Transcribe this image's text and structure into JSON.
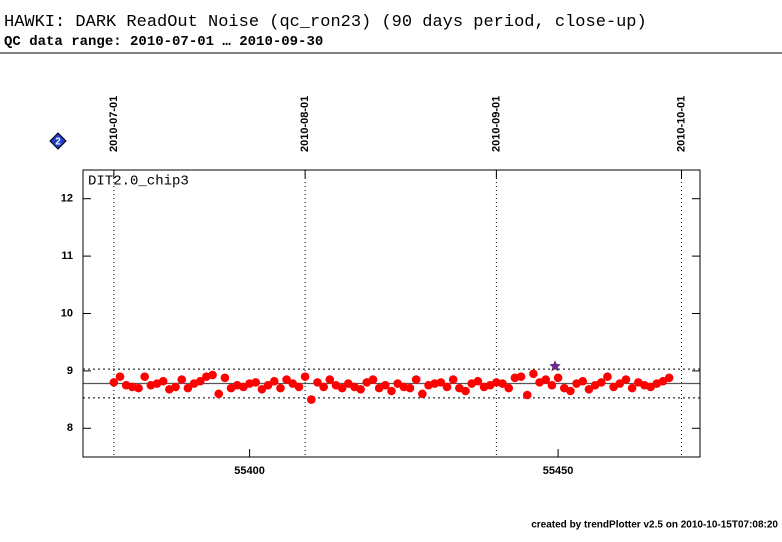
{
  "chart_data": {
    "type": "scatter",
    "title": "HAWKI: DARK ReadOut Noise (qc_ron23) (90 days period, close-up)",
    "subtitle": "QC data range: 2010-07-01 … 2010-09-30",
    "panel_label": "DIT2.0_chip3",
    "badge": "2",
    "footer": "created by trendPlotter v2.5 on 2010-10-15T07:08:20",
    "xlim": [
      55373,
      55473
    ],
    "xticks": [
      55400,
      55450
    ],
    "x2ticks": [
      {
        "value": 55378,
        "label": "2010-07-01"
      },
      {
        "value": 55409,
        "label": "2010-08-01"
      },
      {
        "value": 55440,
        "label": "2010-09-01"
      },
      {
        "value": 55470,
        "label": "2010-10-01"
      }
    ],
    "ylim": [
      7.5,
      12.5
    ],
    "yticks": [
      8,
      9,
      10,
      11,
      12
    ],
    "mean": 8.78,
    "limits": [
      8.53,
      9.03
    ],
    "series": [
      {
        "color": "#ff0000",
        "marker": "circle",
        "x": [
          55378,
          55379,
          55380,
          55381,
          55382,
          55383,
          55384,
          55385,
          55386,
          55387,
          55388,
          55389,
          55390,
          55391,
          55392,
          55393,
          55394,
          55395,
          55396,
          55397,
          55398,
          55399,
          55400,
          55401,
          55402,
          55403,
          55404,
          55405,
          55406,
          55407,
          55408,
          55409,
          55410,
          55411,
          55412,
          55413,
          55414,
          55415,
          55416,
          55417,
          55418,
          55419,
          55420,
          55421,
          55422,
          55423,
          55424,
          55425,
          55426,
          55427,
          55428,
          55429,
          55430,
          55431,
          55432,
          55433,
          55434,
          55435,
          55436,
          55437,
          55438,
          55439,
          55440,
          55441,
          55442,
          55443,
          55444,
          55445,
          55446,
          55447,
          55448,
          55449,
          55450,
          55451,
          55452,
          55453,
          55454,
          55455,
          55456,
          55457,
          55458,
          55459,
          55460,
          55461,
          55462,
          55463,
          55464,
          55465,
          55466,
          55467,
          55468
        ],
        "values": [
          8.8,
          8.9,
          8.75,
          8.72,
          8.7,
          8.9,
          8.75,
          8.78,
          8.82,
          8.68,
          8.72,
          8.85,
          8.7,
          8.78,
          8.82,
          8.9,
          8.93,
          8.6,
          8.88,
          8.7,
          8.75,
          8.72,
          8.78,
          8.8,
          8.68,
          8.75,
          8.82,
          8.7,
          8.85,
          8.78,
          8.72,
          8.9,
          8.5,
          8.8,
          8.72,
          8.85,
          8.75,
          8.7,
          8.78,
          8.72,
          8.68,
          8.8,
          8.85,
          8.7,
          8.75,
          8.65,
          8.78,
          8.72,
          8.7,
          8.85,
          8.6,
          8.75,
          8.78,
          8.8,
          8.72,
          8.85,
          8.7,
          8.65,
          8.78,
          8.82,
          8.72,
          8.75,
          8.8,
          8.78,
          8.7,
          8.88,
          8.9,
          8.58,
          8.95,
          8.8,
          8.85,
          8.75,
          8.88,
          8.7,
          8.65,
          8.78,
          8.82,
          8.68,
          8.75,
          8.8,
          8.9,
          8.72,
          8.78,
          8.85,
          8.7,
          8.8,
          8.75,
          8.72,
          8.78,
          8.82,
          8.88
        ]
      },
      {
        "color": "#7a1fa0",
        "marker": "star",
        "x": [
          55449.5
        ],
        "values": [
          9.08
        ]
      }
    ]
  }
}
